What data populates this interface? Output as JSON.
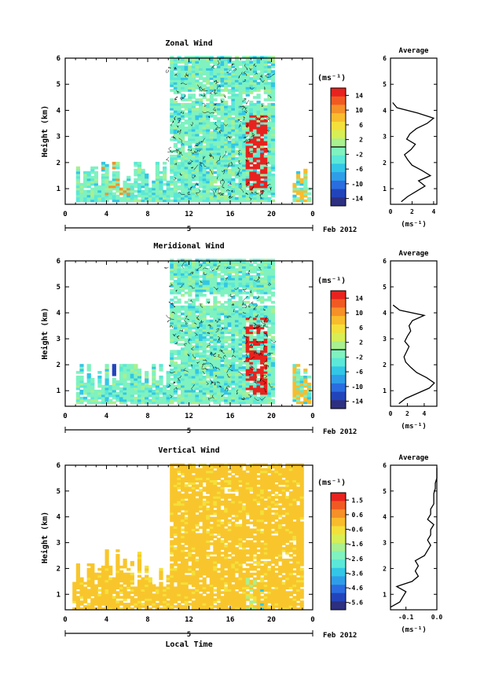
{
  "figure": {
    "xlabel": "Local Time",
    "date_label": "Feb 2012",
    "day_marker": "5",
    "cbar_unit": "(ms⁻¹)",
    "avg_xlabel": "(ms⁻¹)",
    "colormap": [
      "#2d2f80",
      "#2244bb",
      "#2a6de0",
      "#2f9ee8",
      "#33c6e6",
      "#5be8d8",
      "#7ff2c0",
      "#a8f090",
      "#d8ee55",
      "#f4e03a",
      "#f8bc2c",
      "#f69028",
      "#f05a22",
      "#e8221e"
    ]
  },
  "chart_data": [
    {
      "type": "heatmap",
      "title": "Zonal Wind",
      "ylabel": "Height (km)",
      "x_ticks": [
        "0",
        "4",
        "8",
        "12",
        "16",
        "20",
        "0"
      ],
      "xlim": [
        0,
        24
      ],
      "y_ticks": [
        "1",
        "2",
        "3",
        "4",
        "5",
        "6"
      ],
      "ylim": [
        0.4,
        6
      ],
      "colorbar": {
        "ticks": [
          "14",
          "10",
          "6",
          "2",
          "-2",
          "-6",
          "-10",
          "-14"
        ],
        "min": -16,
        "max": 16,
        "marker": 0
      },
      "average": {
        "title": "Average",
        "x_ticks": [
          "0",
          "2",
          "4"
        ],
        "xlim": [
          0,
          4.3
        ],
        "y": [
          0.5,
          0.7,
          0.9,
          1.1,
          1.3,
          1.5,
          1.7,
          1.9,
          2.1,
          2.3,
          2.5,
          2.7,
          2.9,
          3.1,
          3.3,
          3.5,
          3.7,
          3.9,
          4.1,
          4.3
        ],
        "values": [
          1.0,
          1.6,
          2.4,
          3.2,
          2.6,
          3.7,
          2.9,
          2.0,
          1.6,
          1.3,
          1.9,
          2.3,
          1.5,
          1.8,
          2.4,
          3.4,
          4.0,
          2.5,
          0.6,
          0.2
        ]
      }
    },
    {
      "type": "heatmap",
      "title": "Meridional Wind",
      "ylabel": "Height (km)",
      "x_ticks": [
        "0",
        "4",
        "8",
        "12",
        "16",
        "20",
        "0"
      ],
      "xlim": [
        0,
        24
      ],
      "y_ticks": [
        "1",
        "2",
        "3",
        "4",
        "5",
        "6"
      ],
      "ylim": [
        0.4,
        6
      ],
      "colorbar": {
        "ticks": [
          "14",
          "10",
          "6",
          "2",
          "-2",
          "-6",
          "-10",
          "-14"
        ],
        "min": -16,
        "max": 16,
        "marker": 0
      },
      "average": {
        "title": "Average",
        "x_ticks": [
          "0",
          "2",
          "4"
        ],
        "xlim": [
          0,
          5.5
        ],
        "y": [
          0.5,
          0.7,
          0.9,
          1.1,
          1.3,
          1.5,
          1.7,
          1.9,
          2.1,
          2.3,
          2.5,
          2.7,
          2.9,
          3.1,
          3.3,
          3.5,
          3.7,
          3.9,
          4.1,
          4.3
        ],
        "values": [
          1.0,
          1.8,
          3.2,
          4.6,
          5.2,
          4.3,
          3.1,
          2.4,
          1.8,
          1.6,
          1.9,
          2.2,
          1.7,
          2.0,
          2.4,
          2.2,
          2.6,
          4.0,
          1.1,
          0.3
        ]
      }
    },
    {
      "type": "heatmap",
      "title": "Vertical Wind",
      "ylabel": "Height (km)",
      "x_ticks": [
        "0",
        "4",
        "8",
        "12",
        "16",
        "20",
        "0"
      ],
      "xlim": [
        0,
        24
      ],
      "y_ticks": [
        "1",
        "2",
        "3",
        "4",
        "5",
        "6"
      ],
      "ylim": [
        0.4,
        6
      ],
      "colorbar": {
        "ticks": [
          "1.5",
          "0.6",
          "-0.6",
          "-1.6",
          "-2.6",
          "-3.6",
          "-4.6",
          "-5.6"
        ],
        "min": -6,
        "max": 2
      },
      "average": {
        "title": "Average",
        "x_ticks": [
          "-0.1",
          "0.0"
        ],
        "xlim": [
          -0.15,
          0.0
        ],
        "y": [
          0.5,
          0.7,
          0.9,
          1.1,
          1.3,
          1.5,
          1.7,
          1.9,
          2.1,
          2.3,
          2.5,
          2.7,
          2.9,
          3.1,
          3.3,
          3.5,
          3.7,
          3.9,
          4.1,
          4.3,
          4.5,
          4.7,
          4.9,
          5.1,
          5.3,
          5.5,
          5.7,
          5.9
        ],
        "values": [
          -0.15,
          -0.12,
          -0.11,
          -0.1,
          -0.13,
          -0.08,
          -0.06,
          -0.07,
          -0.06,
          -0.07,
          -0.04,
          -0.03,
          -0.02,
          -0.03,
          -0.02,
          -0.02,
          -0.01,
          -0.03,
          -0.02,
          -0.02,
          -0.01,
          -0.01,
          -0.01,
          -0.005,
          -0.005,
          0.0,
          0.0,
          0.0
        ]
      }
    }
  ]
}
